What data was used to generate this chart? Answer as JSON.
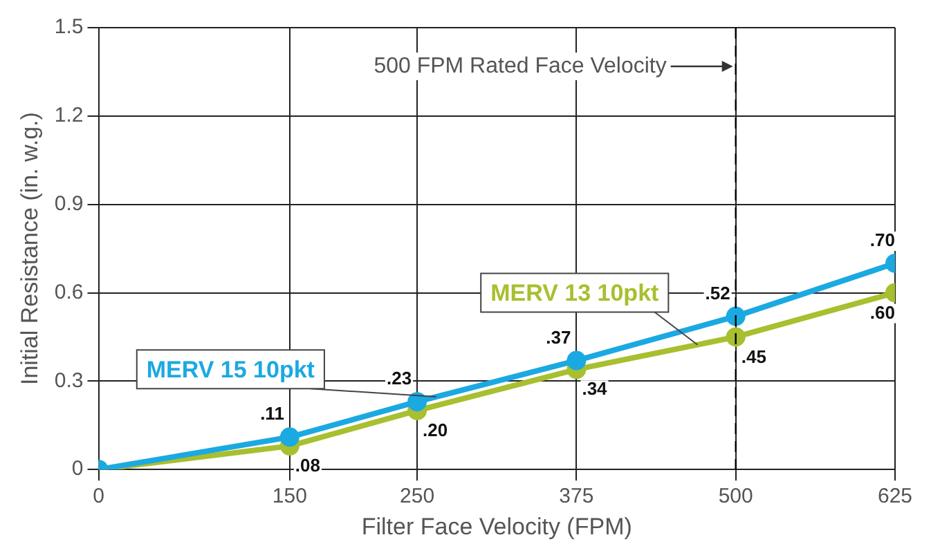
{
  "chart_data": {
    "type": "line",
    "xlabel": "Filter Face Velocity (FPM)",
    "ylabel": "Initial Resistance (in. w.g.)",
    "x": [
      0,
      150,
      250,
      375,
      500,
      625
    ],
    "series": [
      {
        "name": "MERV 15 10pkt",
        "color": "#1ba9e1",
        "values": [
          0,
          0.11,
          0.23,
          0.37,
          0.52,
          0.7
        ],
        "value_labels": [
          null,
          ".11",
          ".23",
          ".37",
          ".52",
          ".70"
        ]
      },
      {
        "name": "MERV 13 10pkt",
        "color": "#a8bf2f",
        "values": [
          0,
          0.08,
          0.2,
          0.34,
          0.45,
          0.6
        ],
        "value_labels": [
          null,
          ".08",
          ".20",
          ".34",
          ".45",
          ".60"
        ]
      }
    ],
    "xlim": [
      0,
      625
    ],
    "xticks": [
      0,
      150,
      250,
      375,
      500,
      625
    ],
    "ylim": [
      0,
      1.5
    ],
    "yticks": [
      0,
      0.3,
      0.6,
      0.9,
      1.2,
      1.5
    ],
    "grid": true,
    "legend": false,
    "marker": "circle",
    "line_style": "solid",
    "ref_lines": [
      {
        "axis": "x",
        "value": 500,
        "label": "500 FPM Rated Face Velocity",
        "color": "#000000",
        "line_style": "dashed"
      }
    ]
  }
}
